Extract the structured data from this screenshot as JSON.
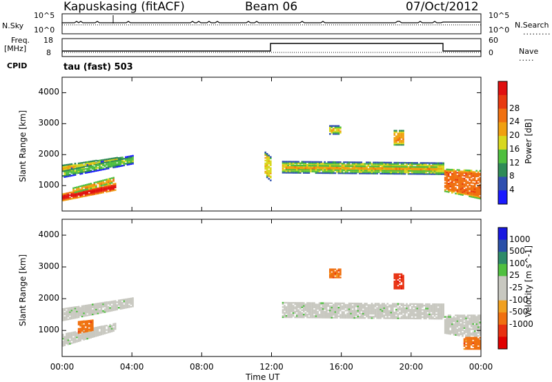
{
  "header": {
    "station": "Kapuskasing (fitACF)",
    "beam": "Beam 06",
    "date": "07/Oct/2012",
    "mode": "tau (fast) 503"
  },
  "strips": {
    "nsky_label": "N.Sky",
    "nsky_ticks": [
      "10^5",
      "10^0"
    ],
    "nsearch_label": "N.Search",
    "nsearch_ticks": [
      "10^5",
      "10^0"
    ],
    "freq_label": "Freq.",
    "freq_unit": "[MHz]",
    "freq_ticks": [
      "18",
      "8"
    ],
    "cpid_label": "CPID",
    "nave_label": "Nave",
    "nave_ticks": [
      "60",
      "0"
    ]
  },
  "colors": {
    "power": [
      "#1a1aff",
      "#2f4fb0",
      "#2e8b57",
      "#4fbf3f",
      "#d8d81e",
      "#f0a010",
      "#f07010",
      "#e83a10",
      "#e01010"
    ],
    "velocity": [
      "#1818e0",
      "#2a4fa8",
      "#2e8b6a",
      "#50c040",
      "#c8c8c0",
      "#c8c8c0",
      "#f0a020",
      "#f07010",
      "#e83010",
      "#e00000"
    ]
  },
  "chart_data": [
    {
      "type": "heatmap",
      "name": "power",
      "xlabel": "Time UT",
      "ylabel": "Slant Range [km]",
      "xlim": [
        0,
        24
      ],
      "ylim": [
        180,
        4500
      ],
      "x_ticks": [
        "00:00",
        "04:00",
        "08:00",
        "12:00",
        "16:00",
        "20:00",
        "00:00"
      ],
      "y_ticks": [
        1000,
        2000,
        3000,
        4000
      ],
      "colorbar": {
        "label": "Power [dB]",
        "ticks": [
          4,
          8,
          12,
          16,
          20,
          24,
          28
        ]
      },
      "bands": [
        {
          "t0": 0.0,
          "t1": 4.1,
          "r0": 1250,
          "r1": 1550,
          "r0_end": 1700,
          "r1_end": 2000,
          "level": 3
        },
        {
          "t0": 0.0,
          "t1": 3.5,
          "r0": 1450,
          "r1": 1680,
          "r0_end": 1850,
          "r1_end": 1950,
          "level": 5
        },
        {
          "t0": 0.0,
          "t1": 3.1,
          "r0": 500,
          "r1": 750,
          "r0_end": 850,
          "r1_end": 1100,
          "level": 8
        },
        {
          "t0": 0.6,
          "t1": 3.0,
          "r0": 750,
          "r1": 950,
          "r0_end": 1100,
          "r1_end": 1300,
          "level": 6
        },
        {
          "t0": 11.6,
          "t1": 12.0,
          "r0": 1300,
          "r1": 2100,
          "r0_end": 1100,
          "r1_end": 1900,
          "level": 4
        },
        {
          "t0": 12.6,
          "t1": 21.9,
          "r0": 1400,
          "r1": 1800,
          "r0_end": 1350,
          "r1_end": 1750,
          "level": 4
        },
        {
          "t0": 12.8,
          "t1": 21.5,
          "r0": 1500,
          "r1": 1680,
          "r0_end": 1450,
          "r1_end": 1620,
          "level": 6
        },
        {
          "t0": 21.9,
          "t1": 24.0,
          "r0": 800,
          "r1": 1550,
          "r0_end": 550,
          "r1_end": 1500,
          "level": 6
        },
        {
          "t0": 15.3,
          "t1": 16.0,
          "r0": 2650,
          "r1": 2950,
          "r0_end": 2650,
          "r1_end": 2950,
          "level": 4
        },
        {
          "t0": 19.0,
          "t1": 19.6,
          "r0": 2300,
          "r1": 2800,
          "r0_end": 2300,
          "r1_end": 2800,
          "level": 5
        }
      ]
    },
    {
      "type": "heatmap",
      "name": "velocity",
      "xlabel": "Time UT",
      "ylabel": "Slant Range [km]",
      "xlim": [
        0,
        24
      ],
      "ylim": [
        180,
        4500
      ],
      "x_ticks": [
        "00:00",
        "04:00",
        "08:00",
        "12:00",
        "16:00",
        "20:00",
        "00:00"
      ],
      "y_ticks": [
        1000,
        2000,
        3000,
        4000
      ],
      "colorbar": {
        "label": "Velocity [m s^-1]",
        "ticks": [
          1000,
          500,
          100,
          25,
          -25,
          -100,
          -500,
          -1000
        ]
      },
      "bands": [
        {
          "t0": 0.0,
          "t1": 4.1,
          "r0": 1300,
          "r1": 1700,
          "r0_end": 1750,
          "r1_end": 2050,
          "level": 4
        },
        {
          "t0": 0.0,
          "t1": 3.1,
          "r0": 500,
          "r1": 900,
          "r0_end": 1000,
          "r1_end": 1250,
          "level": 4
        },
        {
          "t0": 0.9,
          "t1": 1.8,
          "r0": 900,
          "r1": 1300,
          "r0_end": 1000,
          "r1_end": 1350,
          "level": 7
        },
        {
          "t0": 12.6,
          "t1": 21.9,
          "r0": 1400,
          "r1": 1900,
          "r0_end": 1350,
          "r1_end": 1850,
          "level": 4
        },
        {
          "t0": 21.9,
          "t1": 24.0,
          "r0": 900,
          "r1": 1500,
          "r0_end": 700,
          "r1_end": 1500,
          "level": 4
        },
        {
          "t0": 23.0,
          "t1": 24.0,
          "r0": 400,
          "r1": 800,
          "r0_end": 400,
          "r1_end": 800,
          "level": 7
        },
        {
          "t0": 15.3,
          "t1": 16.0,
          "r0": 2650,
          "r1": 2950,
          "r0_end": 2650,
          "r1_end": 2950,
          "level": 7
        },
        {
          "t0": 19.0,
          "t1": 19.6,
          "r0": 2300,
          "r1": 2800,
          "r0_end": 2300,
          "r1_end": 2800,
          "level": 8
        }
      ]
    }
  ]
}
